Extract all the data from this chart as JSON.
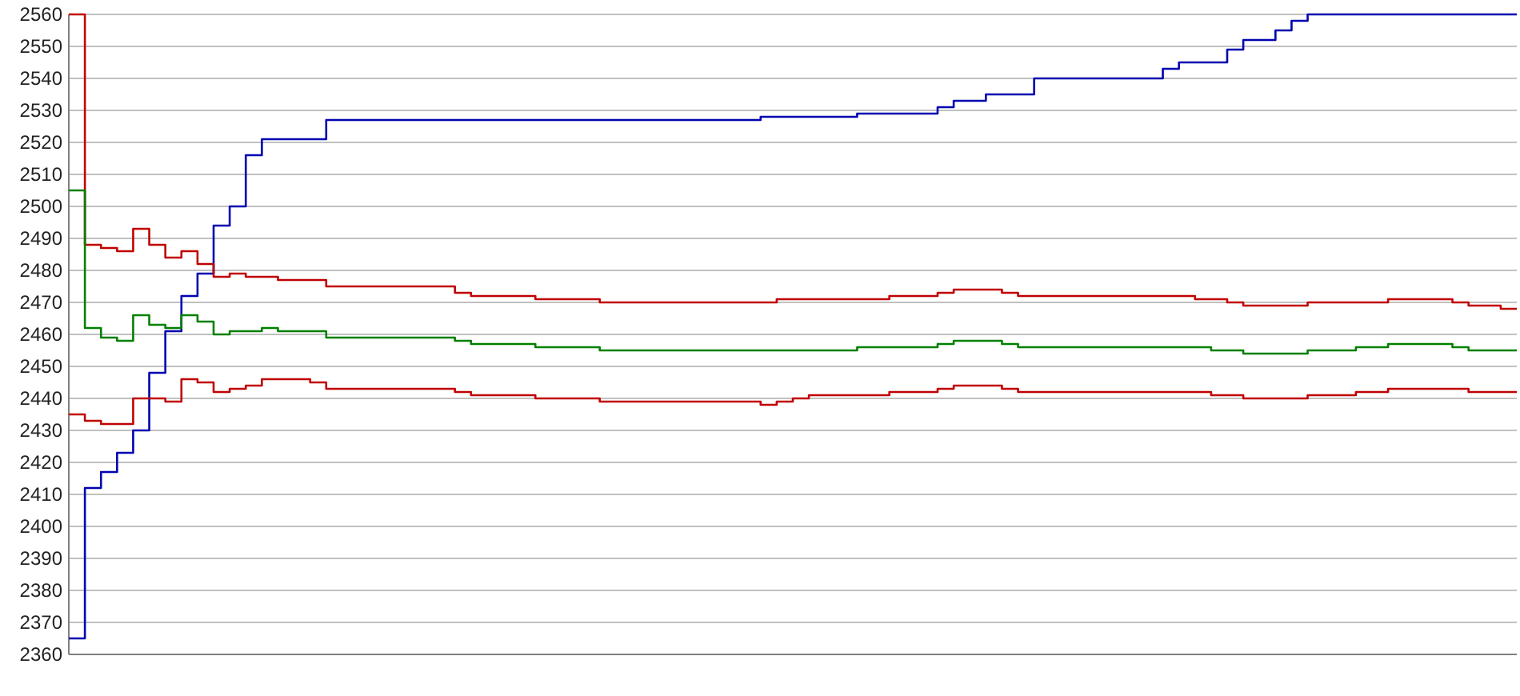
{
  "chart_data": {
    "type": "step",
    "categories": [
      null,
      null,
      null,
      null,
      null,
      null,
      null,
      null,
      null,
      null,
      null,
      null,
      null,
      null,
      null,
      null,
      null,
      null,
      null,
      null,
      null,
      null,
      null,
      null,
      null,
      null,
      null,
      null,
      null,
      null,
      null,
      null,
      null,
      null,
      null,
      null,
      null,
      null,
      null,
      null,
      null,
      null,
      null,
      null,
      null,
      null,
      null,
      null,
      null,
      null,
      null,
      null,
      null,
      null,
      null,
      null,
      null,
      null,
      null,
      null,
      null,
      null,
      null,
      null,
      null,
      null,
      null,
      null,
      null,
      null,
      null,
      null,
      null,
      null,
      null,
      null,
      null,
      null,
      null,
      null,
      null,
      null,
      null,
      null,
      null,
      null,
      null,
      null,
      null,
      null,
      null
    ],
    "ylim": [
      2360,
      2560
    ],
    "yticks": [
      2360,
      2370,
      2380,
      2390,
      2400,
      2410,
      2420,
      2430,
      2440,
      2450,
      2460,
      2470,
      2480,
      2490,
      2500,
      2510,
      2520,
      2530,
      2540,
      2550,
      2560
    ],
    "grid": "y",
    "tick_labels": "y",
    "series": [
      {
        "color": "#0000b0",
        "values": [
          2365,
          2412,
          2417,
          2423,
          2430,
          2448,
          2461,
          2472,
          2479,
          2494,
          2500,
          2516,
          2521,
          2521,
          2521,
          2521,
          2527,
          2527,
          2527,
          2527,
          2527,
          2527,
          2527,
          2527,
          2527,
          2527,
          2527,
          2527,
          2527,
          2527,
          2527,
          2527,
          2527,
          2527,
          2527,
          2527,
          2527,
          2527,
          2527,
          2527,
          2527,
          2527,
          2527,
          2528,
          2528,
          2528,
          2528,
          2528,
          2528,
          2529,
          2529,
          2529,
          2529,
          2529,
          2531,
          2533,
          2533,
          2535,
          2535,
          2535,
          2540,
          2540,
          2540,
          2540,
          2540,
          2540,
          2540,
          2540,
          2543,
          2545,
          2545,
          2545,
          2549,
          2552,
          2552,
          2555,
          2558,
          2560,
          2560,
          2560,
          2560,
          2560,
          2560,
          2560,
          2560,
          2560,
          2560,
          2560,
          2560,
          2560,
          2560
        ]
      },
      {
        "color": "#c00000",
        "values": [
          2560,
          2488,
          2487,
          2486,
          2493,
          2488,
          2484,
          2486,
          2482,
          2478,
          2479,
          2478,
          2478,
          2477,
          2477,
          2477,
          2475,
          2475,
          2475,
          2475,
          2475,
          2475,
          2475,
          2475,
          2473,
          2472,
          2472,
          2472,
          2472,
          2471,
          2471,
          2471,
          2471,
          2470,
          2470,
          2470,
          2470,
          2470,
          2470,
          2470,
          2470,
          2470,
          2470,
          2470,
          2471,
          2471,
          2471,
          2471,
          2471,
          2471,
          2471,
          2472,
          2472,
          2472,
          2473,
          2474,
          2474,
          2474,
          2473,
          2472,
          2472,
          2472,
          2472,
          2472,
          2472,
          2472,
          2472,
          2472,
          2472,
          2472,
          2471,
          2471,
          2470,
          2469,
          2469,
          2469,
          2469,
          2470,
          2470,
          2470,
          2470,
          2470,
          2471,
          2471,
          2471,
          2471,
          2470,
          2469,
          2469,
          2468,
          2468
        ]
      },
      {
        "color": "#008000",
        "values": [
          2505,
          2462,
          2459,
          2458,
          2466,
          2463,
          2462,
          2466,
          2464,
          2460,
          2461,
          2461,
          2462,
          2461,
          2461,
          2461,
          2459,
          2459,
          2459,
          2459,
          2459,
          2459,
          2459,
          2459,
          2458,
          2457,
          2457,
          2457,
          2457,
          2456,
          2456,
          2456,
          2456,
          2455,
          2455,
          2455,
          2455,
          2455,
          2455,
          2455,
          2455,
          2455,
          2455,
          2455,
          2455,
          2455,
          2455,
          2455,
          2455,
          2456,
          2456,
          2456,
          2456,
          2456,
          2457,
          2458,
          2458,
          2458,
          2457,
          2456,
          2456,
          2456,
          2456,
          2456,
          2456,
          2456,
          2456,
          2456,
          2456,
          2456,
          2456,
          2455,
          2455,
          2454,
          2454,
          2454,
          2454,
          2455,
          2455,
          2455,
          2456,
          2456,
          2457,
          2457,
          2457,
          2457,
          2456,
          2455,
          2455,
          2455,
          2455
        ]
      },
      {
        "color": "#c00000",
        "values": [
          2435,
          2433,
          2432,
          2432,
          2440,
          2440,
          2439,
          2446,
          2445,
          2442,
          2443,
          2444,
          2446,
          2446,
          2446,
          2445,
          2443,
          2443,
          2443,
          2443,
          2443,
          2443,
          2443,
          2443,
          2442,
          2441,
          2441,
          2441,
          2441,
          2440,
          2440,
          2440,
          2440,
          2439,
          2439,
          2439,
          2439,
          2439,
          2439,
          2439,
          2439,
          2439,
          2439,
          2438,
          2439,
          2440,
          2441,
          2441,
          2441,
          2441,
          2441,
          2442,
          2442,
          2442,
          2443,
          2444,
          2444,
          2444,
          2443,
          2442,
          2442,
          2442,
          2442,
          2442,
          2442,
          2442,
          2442,
          2442,
          2442,
          2442,
          2442,
          2441,
          2441,
          2440,
          2440,
          2440,
          2440,
          2441,
          2441,
          2441,
          2442,
          2442,
          2443,
          2443,
          2443,
          2443,
          2443,
          2442,
          2442,
          2442,
          2442
        ]
      }
    ]
  }
}
